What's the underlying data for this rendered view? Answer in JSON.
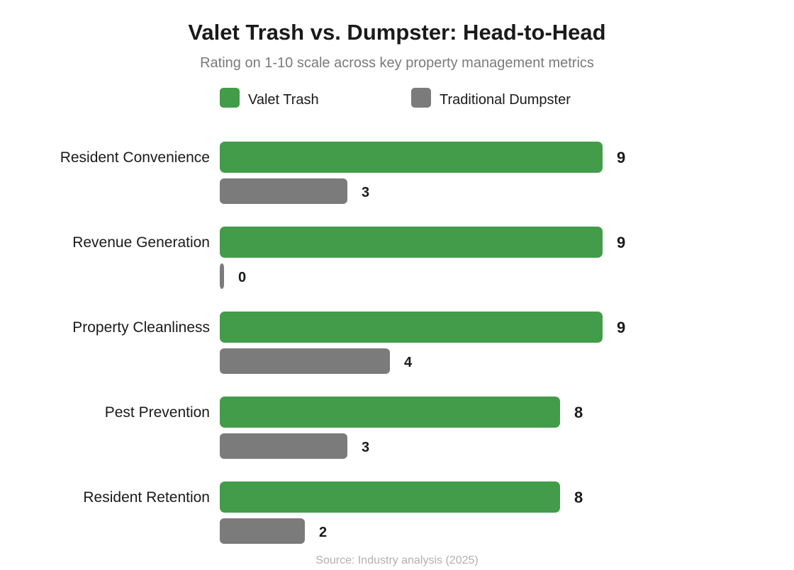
{
  "chart_data": {
    "type": "bar",
    "orientation": "horizontal",
    "title": "Valet Trash vs. Dumpster: Head-to-Head",
    "subtitle": "Rating on 1-10 scale across key property management metrics",
    "source": "Source: Industry analysis (2025)",
    "categories": [
      "Resident Convenience",
      "Revenue Generation",
      "Property Cleanliness",
      "Pest Prevention",
      "Resident Retention"
    ],
    "series": [
      {
        "name": "Valet Trash",
        "color": "#439c4a",
        "values": [
          9,
          9,
          9,
          8,
          8
        ]
      },
      {
        "name": "Traditional Dumpster",
        "color": "#7b7b7b",
        "values": [
          3,
          0,
          4,
          3,
          2
        ]
      }
    ],
    "xlim": [
      0,
      10
    ],
    "grid": false,
    "legend": "top-center",
    "data_labels": true
  }
}
